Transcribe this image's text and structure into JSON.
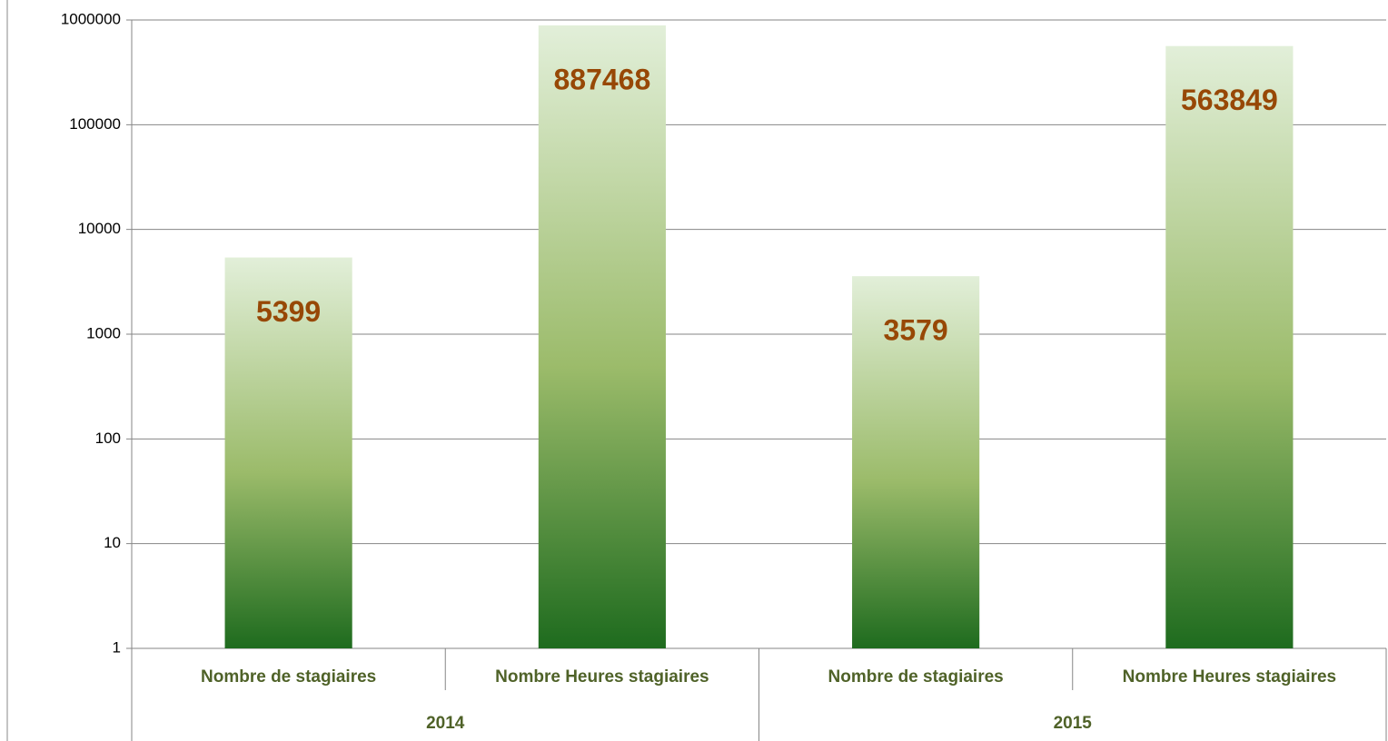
{
  "chart_data": {
    "type": "bar",
    "categories": [
      "Nombre de stagiaires",
      "Nombre Heures stagiaires",
      "Nombre de stagiaires",
      "Nombre Heures stagiaires"
    ],
    "groups": [
      "2014",
      "2015"
    ],
    "values": [
      5399,
      887468,
      3579,
      563849
    ],
    "color": "#1e6b1e",
    "color_top": "#e2efd9",
    "label_color": "#974806",
    "category_color": "#4f6228",
    "ylim": [
      1,
      1000000
    ],
    "yticks": [
      1,
      10,
      100,
      1000,
      10000,
      100000,
      1000000
    ],
    "log_scale": true,
    "grid": true
  }
}
